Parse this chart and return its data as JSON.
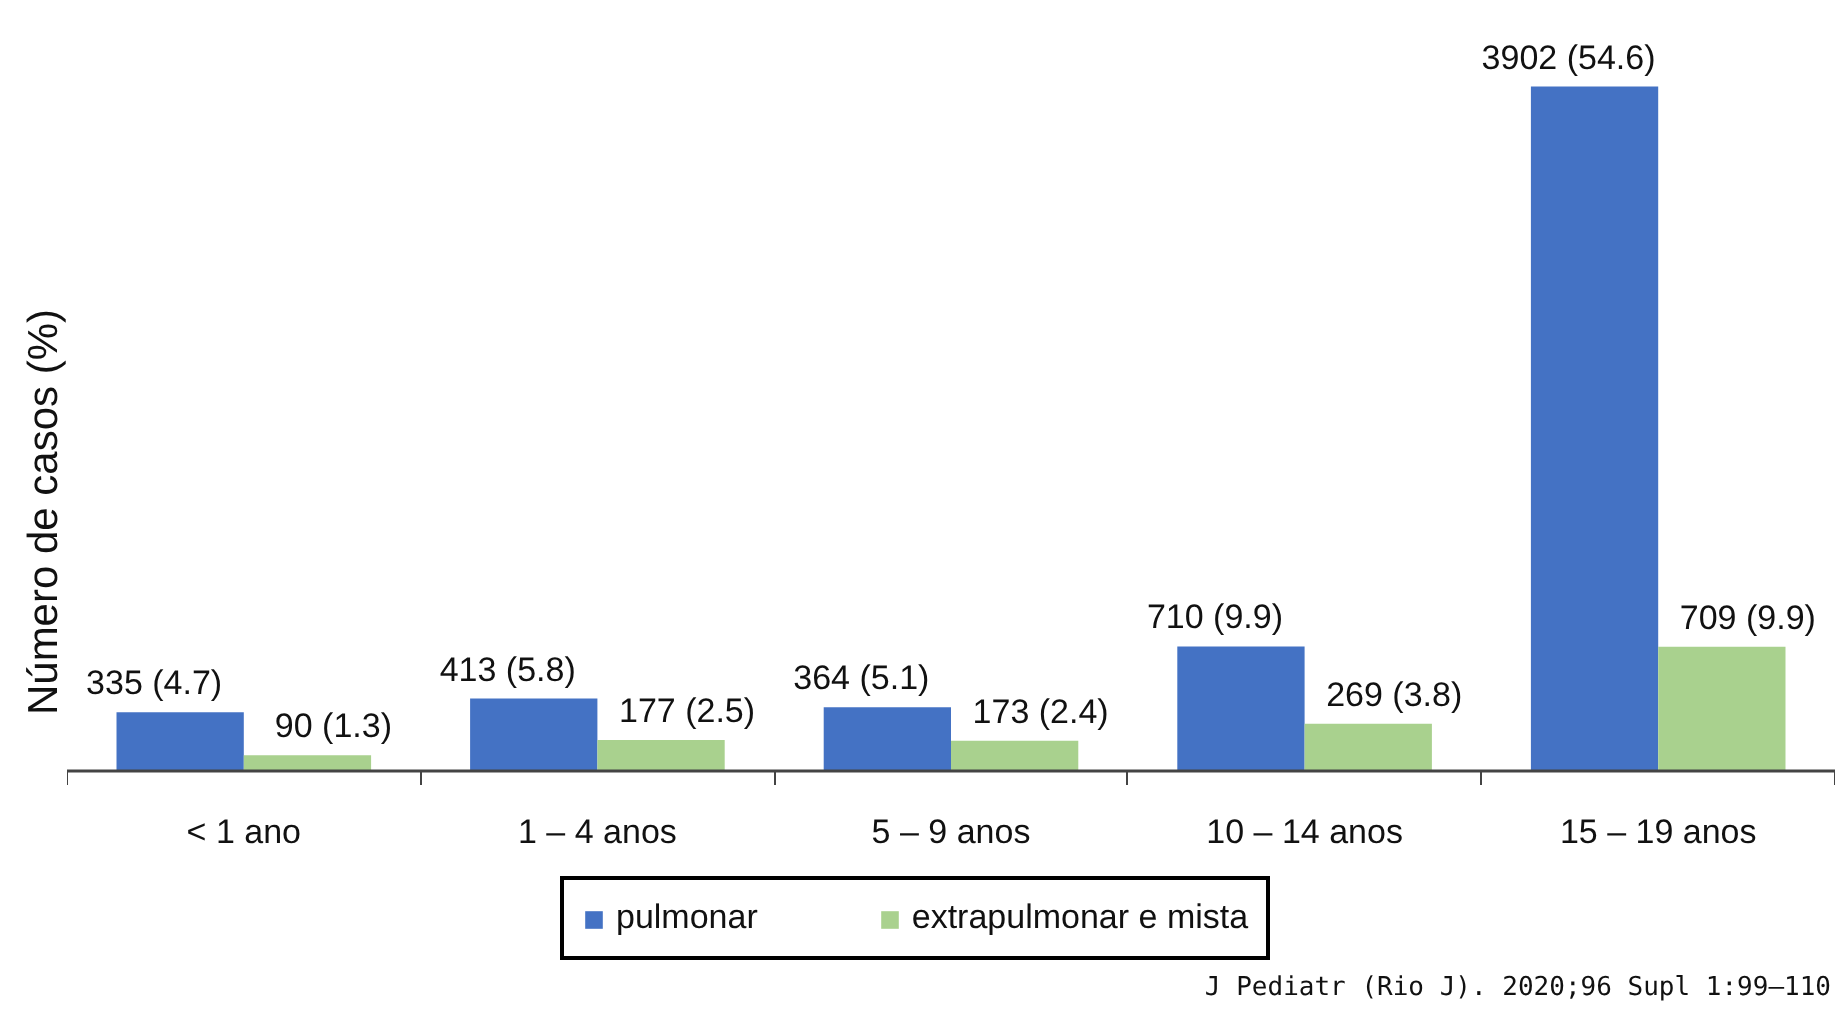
{
  "chart_data": {
    "type": "bar",
    "ylabel": "Número de casos (%)",
    "categories": [
      "< 1 ano",
      "1 – 4 anos",
      "5 – 9 anos",
      "10 – 14 anos",
      "15 – 19 anos"
    ],
    "series": [
      {
        "name": "pulmonar",
        "color": "#4472c4",
        "values": [
          335,
          413,
          364,
          710,
          3902
        ],
        "value_labels": [
          "335 (4.7)",
          "413 (5.8)",
          "364 (5.1)",
          "710 (9.9)",
          "3902 (54.6)"
        ]
      },
      {
        "name": "extrapulmonar e mista",
        "color": "#a9d18e",
        "values": [
          90,
          177,
          173,
          269,
          709
        ],
        "value_labels": [
          "90 (1.3)",
          "177 (2.5)",
          "173 (2.4)",
          "269 (3.8)",
          "709 (9.9)"
        ]
      }
    ],
    "legend": "bottom",
    "grid": false,
    "annotations": [
      "J Pediatr (Rio J). 2020;96 Supl 1:99–110"
    ]
  }
}
